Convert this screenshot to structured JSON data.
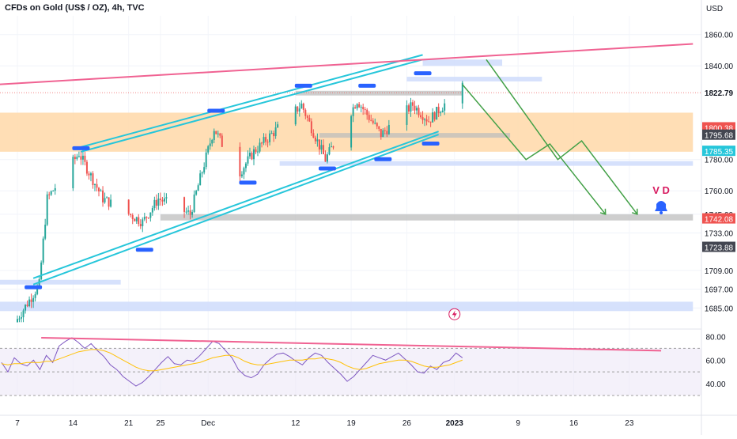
{
  "header": {
    "title": "CFDs on Gold (US$ / OZ), 4h, TVC",
    "currency": "USD"
  },
  "colors": {
    "up": "#26a69a",
    "down": "#ef5350",
    "channel": "#26c6da",
    "trendline": "#f06292",
    "zone_orange": "#ffd8a8",
    "zone_blue": "#cfdcfb",
    "zone_gray": "#bdbdbd",
    "marker": "#2962ff",
    "projection": "#43a047",
    "rsi_line": "#7e57c2",
    "rsi_ma": "#ffc107",
    "alert": "#2962ff",
    "vd_label": "#d81b60"
  },
  "annotations": {
    "vd_text": "V D",
    "alert_icon": "bell-icon",
    "event_icon": "lightning-icon"
  },
  "chart_data": [
    {
      "type": "candlestick",
      "title": "CFDs on Gold (US$ / OZ), 4h, TVC",
      "ylabel": "USD",
      "ylim": [
        1672,
        1872
      ],
      "y_ticks": [
        1685.0,
        1697.0,
        1709.0,
        1733.0,
        1745.0,
        1760.0,
        1780.0,
        1840.0,
        1860.0
      ],
      "x_ticks": [
        "7",
        "14",
        "21",
        "25",
        "Dec",
        "12",
        "19",
        "26",
        "2023",
        "9",
        "16",
        "23"
      ],
      "x_tick_dates": [
        "2022-11-07",
        "2022-11-14",
        "2022-11-21",
        "2022-11-25",
        "2022-12-01",
        "2022-12-12",
        "2022-12-19",
        "2022-12-26",
        "2023-01-01",
        "2023-01-09",
        "2023-01-16",
        "2023-01-23"
      ],
      "price_labels": [
        {
          "value": 1822.79,
          "label": "1822.79",
          "style": "plain"
        },
        {
          "value": 1800.38,
          "label": "1800.38",
          "style": "red"
        },
        {
          "value": 1795.68,
          "label": "1795.68",
          "style": "dark"
        },
        {
          "value": 1785.35,
          "label": "1785.35",
          "style": "teal"
        },
        {
          "value": 1742.08,
          "label": "1742.08",
          "style": "red"
        },
        {
          "value": 1723.88,
          "label": "1723.88",
          "style": "dark"
        }
      ],
      "key_closes": [
        {
          "date": "2022-11-07",
          "price": 1676
        },
        {
          "date": "2022-11-10",
          "price": 1700
        },
        {
          "date": "2022-11-11",
          "price": 1755
        },
        {
          "date": "2022-11-15",
          "price": 1784
        },
        {
          "date": "2022-11-18",
          "price": 1755
        },
        {
          "date": "2022-11-23",
          "price": 1740
        },
        {
          "date": "2022-11-25",
          "price": 1755
        },
        {
          "date": "2022-11-29",
          "price": 1745
        },
        {
          "date": "2022-12-02",
          "price": 1800
        },
        {
          "date": "2022-12-05",
          "price": 1770
        },
        {
          "date": "2022-12-07",
          "price": 1785
        },
        {
          "date": "2022-12-13",
          "price": 1815
        },
        {
          "date": "2022-12-16",
          "price": 1780
        },
        {
          "date": "2022-12-20",
          "price": 1818
        },
        {
          "date": "2022-12-23",
          "price": 1796
        },
        {
          "date": "2022-12-27",
          "price": 1815
        },
        {
          "date": "2022-12-29",
          "price": 1805
        },
        {
          "date": "2023-01-02",
          "price": 1826
        }
      ],
      "zones": [
        {
          "kind": "orange",
          "from": "2022-11-01",
          "to": "2023-01-31",
          "low": 1785,
          "high": 1810
        },
        {
          "kind": "blue",
          "from": "2022-12-10",
          "to": "2023-01-31",
          "low": 1776,
          "high": 1779
        },
        {
          "kind": "blue",
          "from": "2022-11-01",
          "to": "2022-11-20",
          "low": 1700,
          "high": 1703
        },
        {
          "kind": "blue",
          "from": "2022-11-01",
          "to": "2023-01-31",
          "low": 1683,
          "high": 1689
        },
        {
          "kind": "blue",
          "from": "2022-12-26",
          "to": "2023-01-12",
          "low": 1830,
          "high": 1833
        },
        {
          "kind": "blue",
          "from": "2022-12-28",
          "to": "2023-01-07",
          "low": 1840,
          "high": 1844
        },
        {
          "kind": "gray",
          "from": "2022-11-25",
          "to": "2023-01-31",
          "low": 1741,
          "high": 1745
        },
        {
          "kind": "gray",
          "from": "2022-12-15",
          "to": "2023-01-08",
          "low": 1794,
          "high": 1797
        },
        {
          "kind": "gray",
          "from": "2022-12-12",
          "to": "2023-01-02",
          "low": 1821,
          "high": 1824
        }
      ],
      "pivot_markers": [
        {
          "date": "2022-11-09",
          "price": 1698
        },
        {
          "date": "2022-11-15",
          "price": 1787
        },
        {
          "date": "2022-11-23",
          "price": 1722
        },
        {
          "date": "2022-12-02",
          "price": 1811
        },
        {
          "date": "2022-12-06",
          "price": 1765
        },
        {
          "date": "2022-12-13",
          "price": 1827
        },
        {
          "date": "2022-12-16",
          "price": 1774
        },
        {
          "date": "2022-12-21",
          "price": 1827
        },
        {
          "date": "2022-12-23",
          "price": 1780
        },
        {
          "date": "2022-12-28",
          "price": 1835
        },
        {
          "date": "2022-12-29",
          "price": 1790
        }
      ],
      "channel_lines": [
        {
          "from": [
            "2022-11-09",
            1700
          ],
          "to": [
            "2022-12-30",
            1796
          ]
        },
        {
          "from": [
            "2022-11-09",
            1704
          ],
          "to": [
            "2022-12-30",
            1798
          ]
        },
        {
          "from": [
            "2022-11-15",
            1785
          ],
          "to": [
            "2022-12-28",
            1844
          ]
        },
        {
          "from": [
            "2022-11-15",
            1788
          ],
          "to": [
            "2022-12-28",
            1847
          ]
        }
      ],
      "trendline": {
        "from": [
          "2022-11-01",
          1827
        ],
        "to": [
          "2023-01-31",
          1854
        ]
      },
      "projection_paths": [
        [
          [
            "2023-01-02",
            1828
          ],
          [
            "2023-01-10",
            1780
          ],
          [
            "2023-01-13",
            1790
          ],
          [
            "2023-01-20",
            1745
          ]
        ],
        [
          [
            "2023-01-05",
            1844
          ],
          [
            "2023-01-14",
            1780
          ],
          [
            "2023-01-17",
            1792
          ],
          [
            "2023-01-24",
            1745
          ]
        ]
      ]
    },
    {
      "type": "line",
      "name": "RSI",
      "ylim": [
        30,
        85
      ],
      "y_ticks": [
        40.0,
        60.0,
        80.0
      ],
      "bands": [
        30,
        50,
        70
      ],
      "series": [
        {
          "values": [
            58,
            50,
            62,
            57,
            55,
            60,
            52,
            64,
            58,
            72,
            76,
            79,
            75,
            70,
            74,
            68,
            63,
            56,
            52,
            46,
            42,
            38,
            41,
            46,
            52,
            58,
            63,
            57,
            56,
            60,
            59,
            64,
            70,
            76,
            74,
            68,
            62,
            52,
            47,
            45,
            48,
            56,
            61,
            65,
            66,
            63,
            59,
            56,
            62,
            66,
            64,
            58,
            53,
            48,
            42,
            46,
            52,
            58,
            64,
            62,
            60,
            63,
            66,
            61,
            56,
            50,
            49,
            55,
            52,
            58,
            60,
            66,
            62
          ]
        },
        {
          "values": [
            57,
            56,
            57,
            57,
            58,
            58,
            58,
            59,
            59,
            61,
            63,
            65,
            67,
            68,
            69,
            69,
            68,
            66,
            63,
            60,
            57,
            54,
            52,
            51,
            51,
            52,
            53,
            54,
            55,
            56,
            57,
            58,
            60,
            62,
            63,
            64,
            64,
            62,
            59,
            57,
            56,
            56,
            57,
            58,
            59,
            60,
            60,
            60,
            61,
            61,
            62,
            61,
            60,
            58,
            55,
            53,
            52,
            53,
            55,
            57,
            58,
            59,
            60,
            60,
            59,
            57,
            55,
            54,
            54,
            55,
            56,
            58,
            60
          ]
        }
      ],
      "divergence_line": {
        "from": [
          "2022-11-10",
          79
        ],
        "to": [
          "2023-01-27",
          68
        ]
      }
    }
  ]
}
